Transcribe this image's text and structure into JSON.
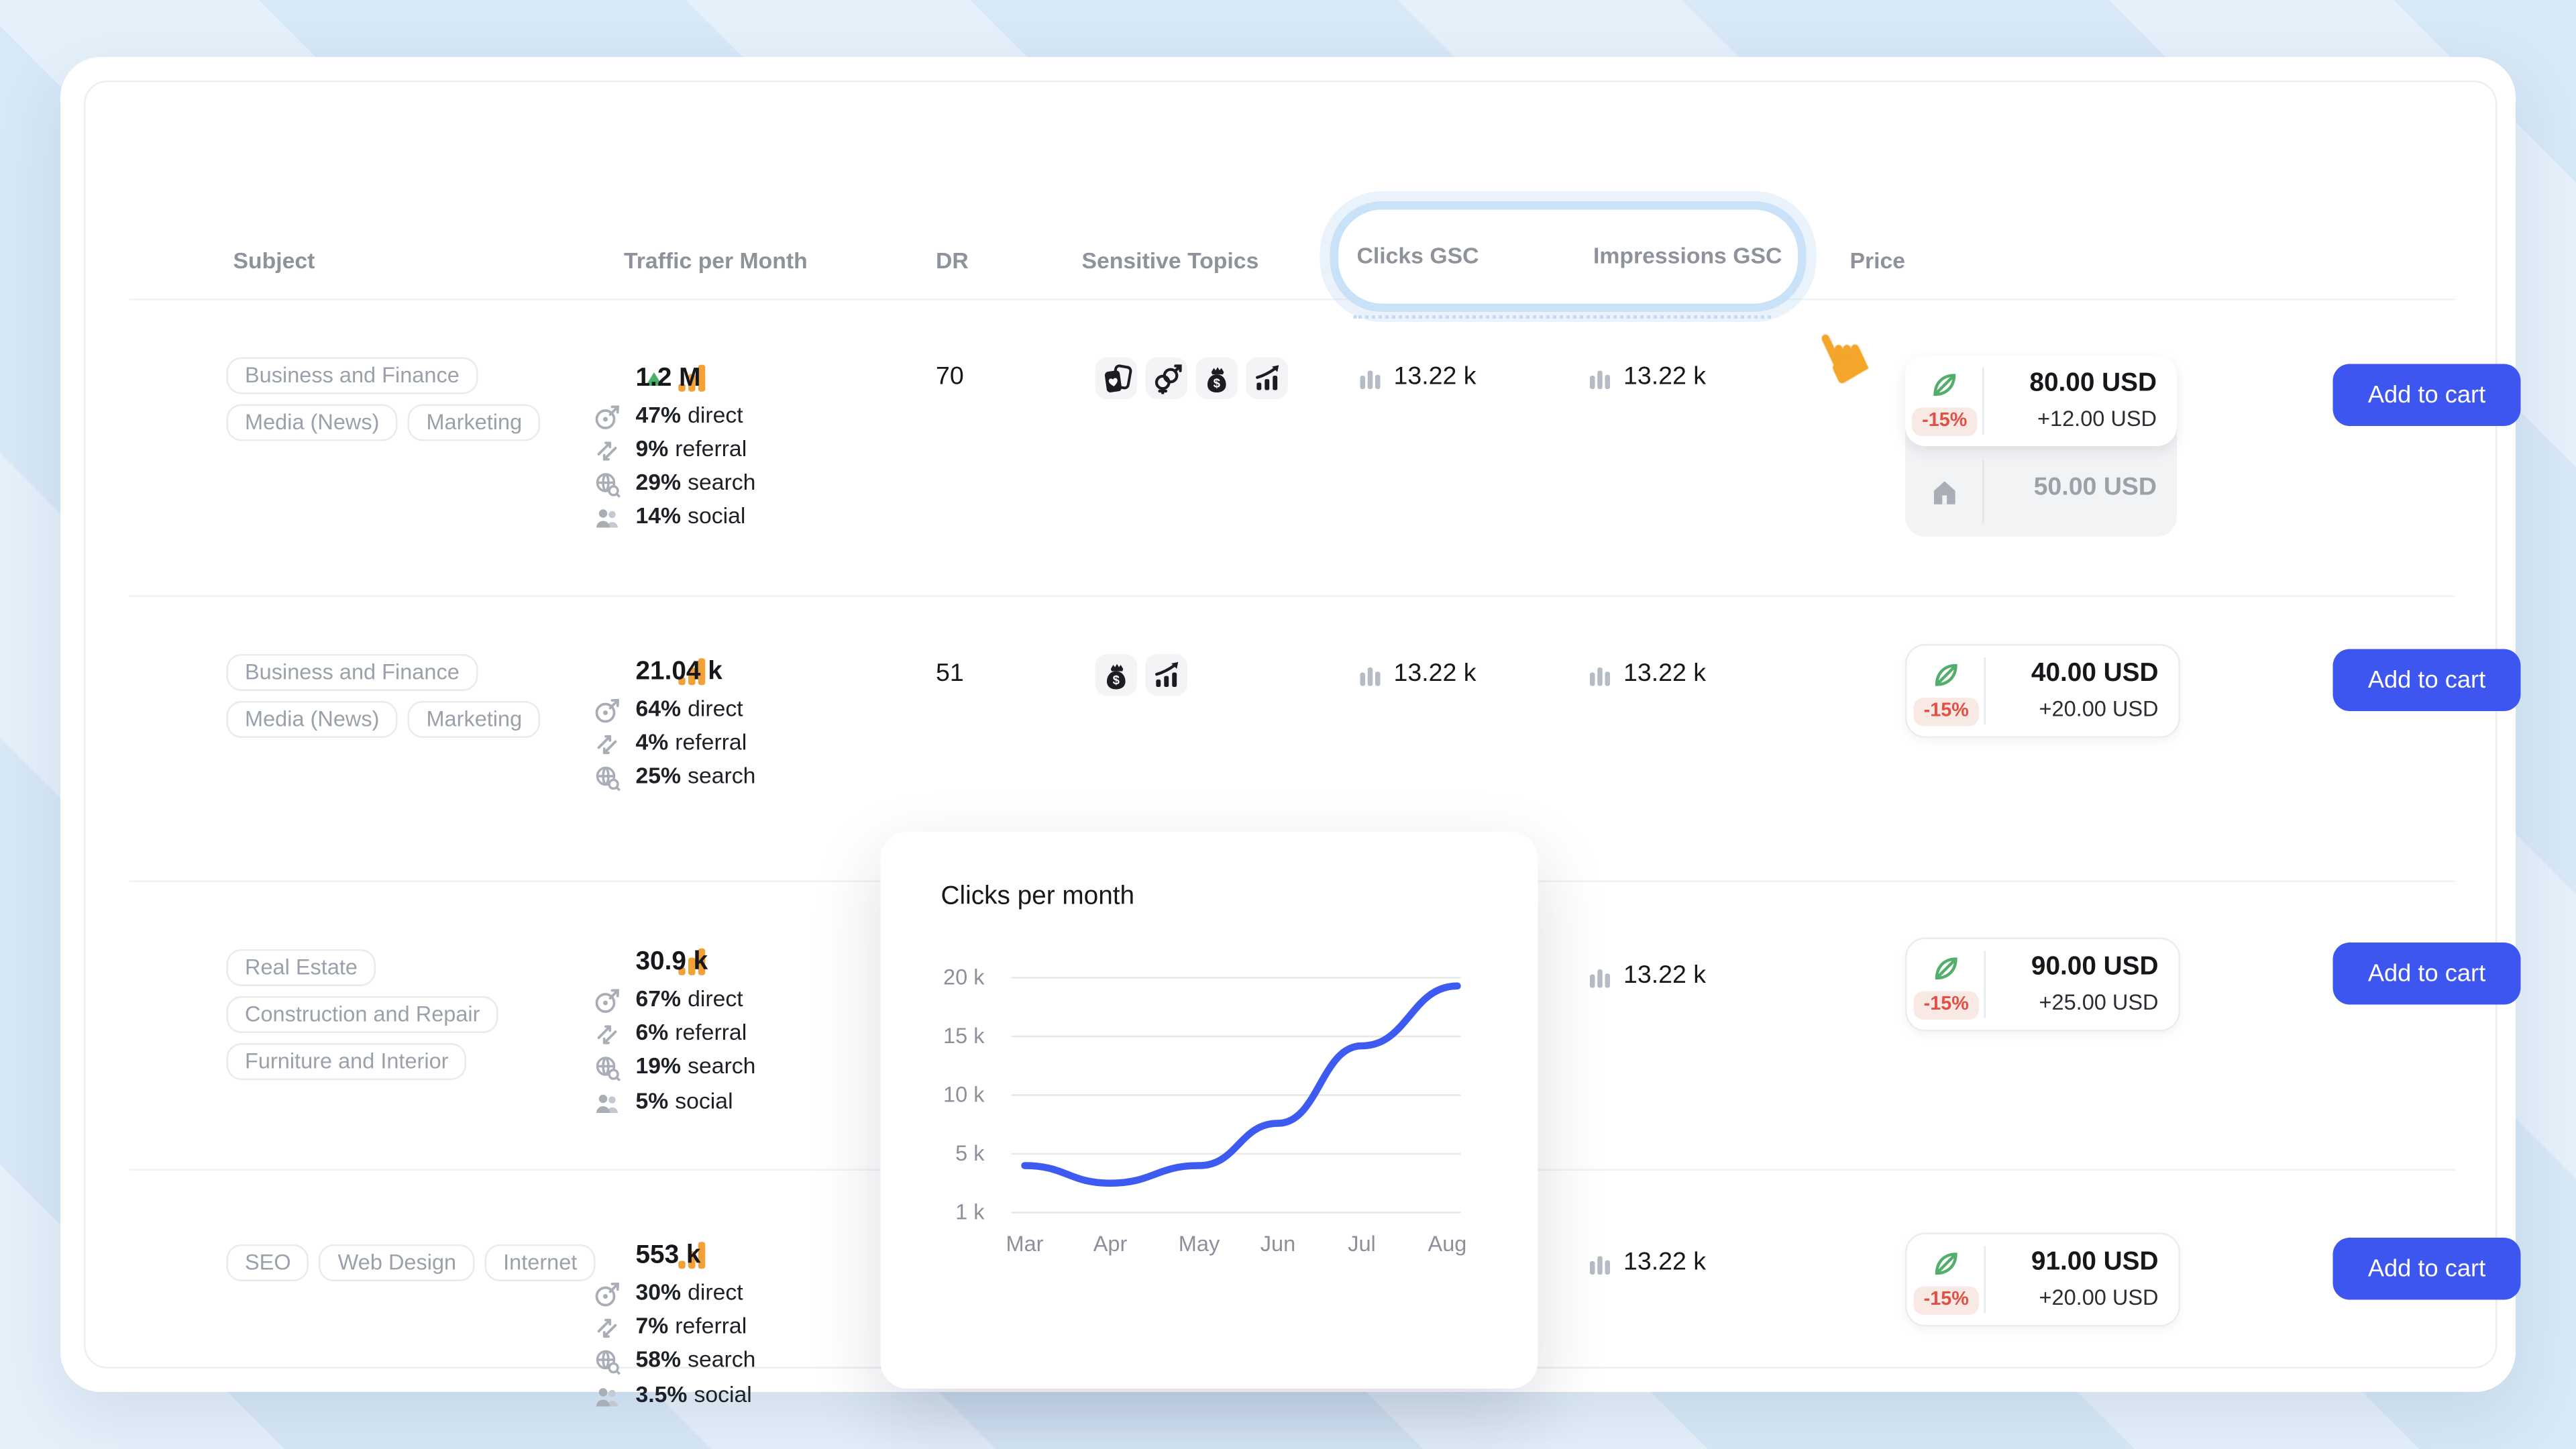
{
  "app": {
    "cart_button": "Add to cart"
  },
  "header": {
    "subject": "Subject",
    "traffic": "Traffic per Month",
    "dr": "DR",
    "sensitive": "Sensitive Topics",
    "clicks": "Clicks GSC",
    "impressions": "Impressions GSC",
    "price": "Price"
  },
  "rows": [
    {
      "tags": [
        "Business and Finance",
        "Media (News)",
        "Marketing"
      ],
      "traffic": {
        "trend": "up",
        "value": "1.2 M",
        "breakdown": [
          {
            "pct": "47%",
            "label": "direct"
          },
          {
            "pct": "9%",
            "label": "referral"
          },
          {
            "pct": "29%",
            "label": "search"
          },
          {
            "pct": "14%",
            "label": "social"
          }
        ]
      },
      "dr": "70",
      "sensitive_topics": [
        "playing-cards",
        "dating",
        "money-bag",
        "trading"
      ],
      "clicks_gsc": "13.22 k",
      "impressions_gsc": "13.22 k",
      "price": {
        "discount": "-15%",
        "current": "80.00 USD",
        "extra": "+12.00 USD",
        "base": "50.00 USD"
      }
    },
    {
      "tags": [
        "Business and Finance",
        "Media (News)",
        "Marketing"
      ],
      "traffic": {
        "value": "21.04 k",
        "breakdown": [
          {
            "pct": "64%",
            "label": "direct"
          },
          {
            "pct": "4%",
            "label": "referral"
          },
          {
            "pct": "25%",
            "label": "search"
          }
        ]
      },
      "dr": "51",
      "sensitive_topics": [
        "money-bag",
        "trading"
      ],
      "clicks_gsc": "13.22 k",
      "impressions_gsc": "13.22 k",
      "price": {
        "discount": "-15%",
        "current": "40.00 USD",
        "extra": "+20.00 USD"
      }
    },
    {
      "tags": [
        "Real Estate",
        "Construction and Repair",
        "Furniture and Interior"
      ],
      "traffic": {
        "value": "30.9 k",
        "breakdown": [
          {
            "pct": "67%",
            "label": "direct"
          },
          {
            "pct": "6%",
            "label": "referral"
          },
          {
            "pct": "19%",
            "label": "search"
          },
          {
            "pct": "5%",
            "label": "social"
          }
        ]
      },
      "impressions_gsc": "13.22 k",
      "price": {
        "discount": "-15%",
        "current": "90.00 USD",
        "extra": "+25.00 USD"
      }
    },
    {
      "tags": [
        "SEO",
        "Web Design",
        "Internet"
      ],
      "traffic": {
        "value": "553 k",
        "breakdown": [
          {
            "pct": "30%",
            "label": "direct"
          },
          {
            "pct": "7%",
            "label": "referral"
          },
          {
            "pct": "58%",
            "label": "search"
          },
          {
            "pct": "3.5%",
            "label": "social"
          }
        ]
      },
      "impressions_gsc": "13.22 k",
      "price": {
        "discount": "-15%",
        "current": "91.00 USD",
        "extra": "+20.00 USD"
      }
    }
  ],
  "chart_data": {
    "type": "line",
    "title": "Clicks per month",
    "x": [
      "Mar",
      "Apr",
      "May",
      "Jun",
      "Jul",
      "Aug"
    ],
    "series": [
      {
        "name": "clicks",
        "values": [
          4200,
          3000,
          4200,
          7600,
          14200,
          19300
        ]
      }
    ],
    "ytick_labels": [
      "20 k",
      "15 k",
      "10 k",
      "5 k",
      "1 k"
    ],
    "ytick_values": [
      20000,
      15000,
      10000,
      5000,
      1000
    ],
    "ylim": [
      1000,
      20000
    ],
    "grid": true,
    "legend": false,
    "line_color": "#3d5af1"
  },
  "icons": {
    "traffic": "analytics-bars-icon",
    "trend": "triangle-up-icon",
    "direct": "target-arrow-icon",
    "referral": "exchange-arrows-icon",
    "search": "globe-search-icon",
    "social": "people-icon",
    "gsc_value": "mini-bar-chart-icon",
    "price_top": "feather-icon",
    "price_base": "house-icon",
    "cursor": "pointing-hand-cursor"
  },
  "colors": {
    "page_bg": "#d7e8f7",
    "accent_blue": "#3d56f0",
    "chart_line": "#3d5af1",
    "traffic_orange": "#f2a137",
    "trend_green": "#47b06b",
    "feather_green": "#53ae6c",
    "discount_red": "#e25043",
    "discount_bg": "#f9e9e4",
    "cursor_orange": "#f4a62b"
  }
}
